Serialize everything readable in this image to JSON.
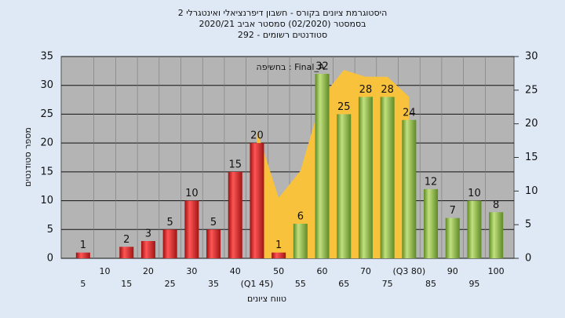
{
  "chart_data": {
    "type": "bar",
    "title": "היסטוגרמת ציונים בקורס - חשבון דיפרנציאלי ואינטגרלי 2",
    "subtitle": "בסמסטר  (02/2020)  סמסטר אביב 2020/21",
    "subtitle2": "סטודנטים רשומים - 292",
    "annotation": "בחשיפה : Final_A",
    "y_label": "מספר סטודנטים",
    "x_label": "טווח ציונים",
    "categories": [
      "5",
      "10",
      "15",
      "20",
      "25",
      "30",
      "35",
      "40",
      "(Q1 45)",
      "50",
      "55",
      "60",
      "65",
      "70",
      "75",
      "(Q3 80)",
      "85",
      "90",
      "95",
      "100"
    ],
    "series": [
      {
        "color": "#d42a2a",
        "values": [
          1,
          null,
          2,
          3,
          5,
          10,
          5,
          15,
          20,
          1,
          null,
          null,
          null,
          null,
          null,
          null,
          null,
          null,
          null,
          null
        ]
      },
      {
        "color": "#8cb84a",
        "values": [
          null,
          null,
          null,
          null,
          null,
          null,
          null,
          null,
          null,
          null,
          6,
          32,
          25,
          28,
          28,
          24,
          12,
          7,
          10,
          8
        ]
      },
      {
        "type": "area",
        "axis": "y2",
        "color": "#f8c23c",
        "values": [
          null,
          null,
          null,
          null,
          null,
          null,
          null,
          null,
          19,
          9,
          13,
          24,
          28,
          27,
          27,
          24,
          null,
          null,
          null,
          null
        ]
      }
    ],
    "ylim": [
      0,
      35
    ],
    "yticks": [
      0,
      5,
      10,
      15,
      20,
      25,
      30,
      35
    ],
    "y2lim": [
      0,
      30
    ],
    "y2ticks": [
      0,
      5,
      10,
      15,
      20,
      25,
      30
    ],
    "grid": true
  }
}
